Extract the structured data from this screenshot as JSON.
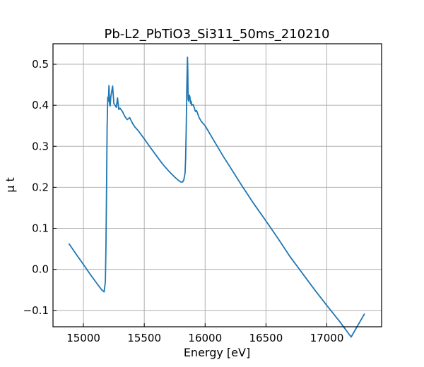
{
  "chart_data": {
    "type": "line",
    "title": "Pb-L2_PbTiO3_Si311_50ms_210210",
    "xlabel": "Energy [eV]",
    "ylabel": "μ t",
    "xlim": [
      14750,
      17450
    ],
    "ylim": [
      -0.14,
      0.55
    ],
    "xticks": [
      15000,
      15500,
      16000,
      16500,
      17000
    ],
    "yticks": [
      -0.1,
      0.0,
      0.1,
      0.2,
      0.3,
      0.4,
      0.5
    ],
    "xtick_labels": [
      "15000",
      "15500",
      "16000",
      "16500",
      "17000"
    ],
    "ytick_labels": [
      "−0.1",
      "0.0",
      "0.1",
      "0.2",
      "0.3",
      "0.4",
      "0.5"
    ],
    "grid": true,
    "series": [
      {
        "color": "#1f77b4",
        "x": [
          14880,
          14950,
          15000,
          15050,
          15100,
          15150,
          15170,
          15180,
          15185,
          15190,
          15195,
          15200,
          15205,
          15210,
          15215,
          15220,
          15225,
          15230,
          15240,
          15250,
          15260,
          15270,
          15280,
          15290,
          15300,
          15320,
          15340,
          15360,
          15380,
          15400,
          15420,
          15450,
          15500,
          15550,
          15600,
          15650,
          15700,
          15750,
          15780,
          15800,
          15815,
          15825,
          15835,
          15840,
          15845,
          15850,
          15855,
          15858,
          15860,
          15865,
          15870,
          15875,
          15880,
          15885,
          15890,
          15900,
          15910,
          15920,
          15930,
          15950,
          15970,
          16000,
          16020,
          16050,
          16100,
          16150,
          16200,
          16300,
          16400,
          16500,
          16600,
          16700,
          16800,
          16900,
          17000,
          17100,
          17200,
          17310
        ],
        "y": [
          0.063,
          0.033,
          0.012,
          -0.01,
          -0.03,
          -0.05,
          -0.055,
          -0.03,
          0.05,
          0.2,
          0.35,
          0.42,
          0.41,
          0.448,
          0.405,
          0.398,
          0.42,
          0.43,
          0.447,
          0.405,
          0.4,
          0.395,
          0.418,
          0.39,
          0.393,
          0.385,
          0.373,
          0.365,
          0.37,
          0.358,
          0.348,
          0.338,
          0.318,
          0.297,
          0.277,
          0.257,
          0.24,
          0.225,
          0.217,
          0.213,
          0.213,
          0.218,
          0.235,
          0.27,
          0.35,
          0.45,
          0.517,
          0.48,
          0.415,
          0.41,
          0.425,
          0.42,
          0.405,
          0.41,
          0.4,
          0.402,
          0.395,
          0.385,
          0.387,
          0.37,
          0.36,
          0.35,
          0.34,
          0.325,
          0.3,
          0.275,
          0.252,
          0.205,
          0.16,
          0.118,
          0.075,
          0.03,
          -0.01,
          -0.05,
          -0.088,
          -0.125,
          -0.165,
          -0.108
        ]
      }
    ]
  }
}
